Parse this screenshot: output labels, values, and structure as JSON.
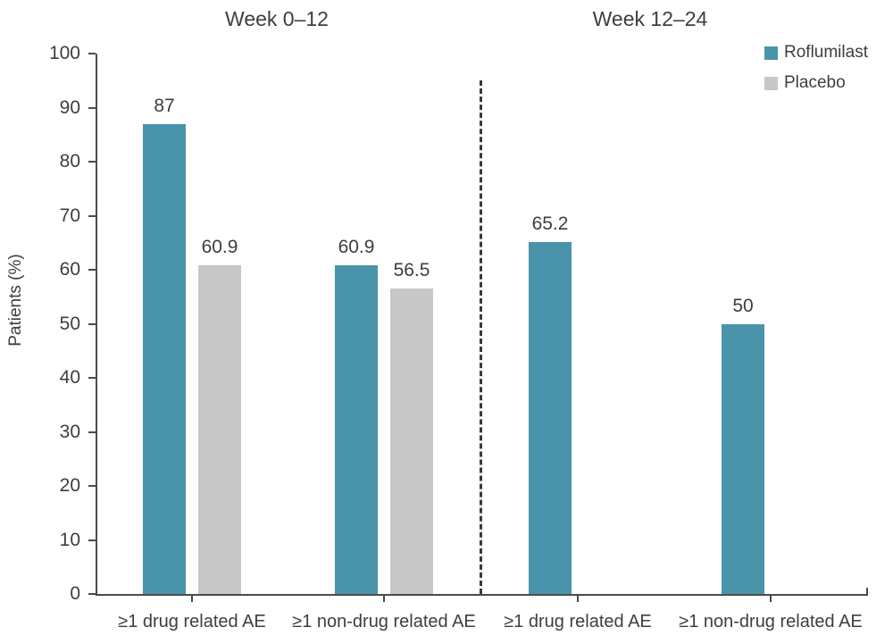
{
  "colors": {
    "roflumilast_teal": "#4994aa",
    "placebo_gray": "#c7c7c7",
    "axis": "#4b4b4b",
    "text": "#3e3e3e"
  },
  "chart_data": {
    "type": "bar",
    "ylabel": "Patients (%)",
    "ylim": [
      0,
      100
    ],
    "yticks": [
      0,
      10,
      20,
      30,
      40,
      50,
      60,
      70,
      80,
      90,
      100
    ],
    "grid": false,
    "legend_position": "top-right",
    "legend": [
      {
        "label": "Roflumilast",
        "color": "#4994aa"
      },
      {
        "label": "Placebo",
        "color": "#c7c7c7"
      }
    ],
    "separator": {
      "style": "dashed-vertical-line",
      "between": [
        "Week 0–12",
        "Week 12–24"
      ]
    },
    "panels": [
      {
        "title": "Week 0–12",
        "categories": [
          "≥1 drug related AE",
          "≥1 non-drug related AE"
        ],
        "series": [
          {
            "name": "Roflumilast",
            "color": "#4994aa",
            "values": [
              87,
              60.9
            ]
          },
          {
            "name": "Placebo",
            "color": "#c7c7c7",
            "values": [
              60.9,
              56.5
            ]
          }
        ]
      },
      {
        "title": "Week 12–24",
        "categories": [
          "≥1 drug related AE",
          "≥1 non-drug related AE"
        ],
        "series": [
          {
            "name": "Roflumilast",
            "color": "#4994aa",
            "values": [
              65.2,
              50
            ]
          },
          {
            "name": "Placebo",
            "color": "#c7c7c7",
            "values": [
              null,
              null
            ]
          }
        ]
      }
    ],
    "value_labels": [
      "87",
      "60.9",
      "60.9",
      "56.5",
      "65.2",
      "50"
    ]
  }
}
